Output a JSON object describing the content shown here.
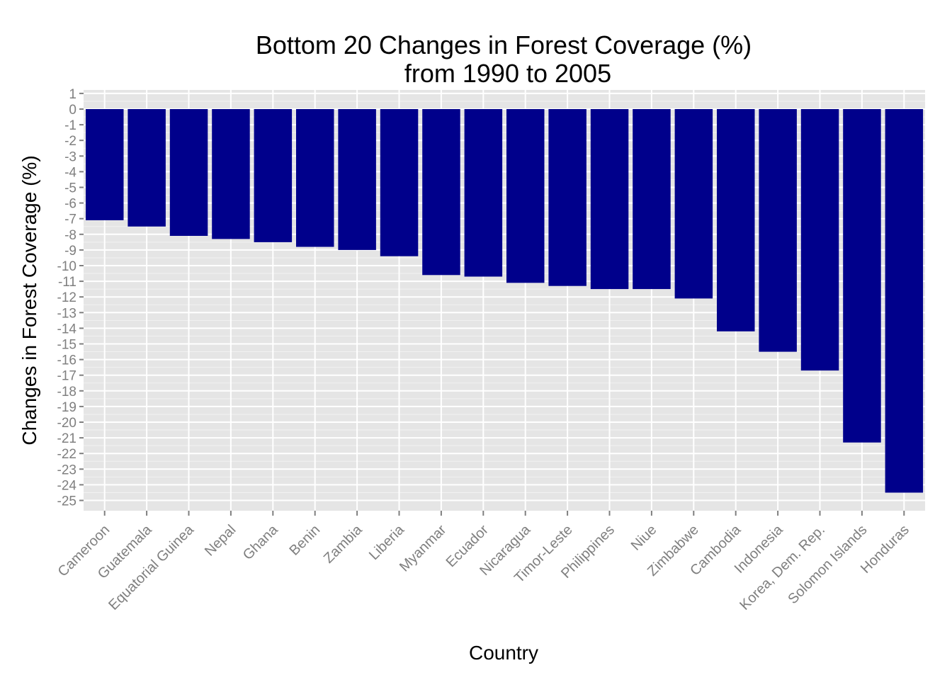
{
  "chart_data": {
    "type": "bar",
    "title": "Bottom 20 Changes in Forest Coverage (%)",
    "subtitle": "from 1990 to 2005",
    "xlabel": "Country",
    "ylabel": "Changes in Forest Coverage (%)",
    "categories": [
      "Cameroon",
      "Guatemala",
      "Equatorial Guinea",
      "Nepal",
      "Ghana",
      "Benin",
      "Zambia",
      "Liberia",
      "Myanmar",
      "Ecuador",
      "Nicaragua",
      "Timor-Leste",
      "Philippines",
      "Niue",
      "Zimbabwe",
      "Cambodia",
      "Indonesia",
      "Korea, Dem. Rep.",
      "Solomon Islands",
      "Honduras"
    ],
    "values": [
      -7.1,
      -7.5,
      -8.1,
      -8.3,
      -8.5,
      -8.8,
      -9.0,
      -9.4,
      -10.6,
      -10.7,
      -11.1,
      -11.3,
      -11.5,
      -11.5,
      -12.1,
      -14.2,
      -15.5,
      -16.7,
      -21.3,
      -24.5
    ],
    "ylim": [
      -25.5,
      1.2
    ],
    "yticks": [
      "1",
      "0",
      "-1",
      "-2",
      "-3",
      "-4",
      "-5",
      "-6",
      "-7",
      "-8",
      "-9",
      "-10",
      "-11",
      "-12",
      "-13",
      "-14",
      "-15",
      "-16",
      "-17",
      "-18",
      "-19",
      "-20",
      "-21",
      "-22",
      "-23",
      "-24",
      "-25"
    ],
    "grid": true,
    "legend": "none",
    "colors": {
      "bar": "#00008B",
      "panel": "#E5E5E5",
      "grid_major": "#FFFFFF",
      "grid_minor": "#F2F2F2",
      "tick_label": "#7F7F7F"
    }
  }
}
